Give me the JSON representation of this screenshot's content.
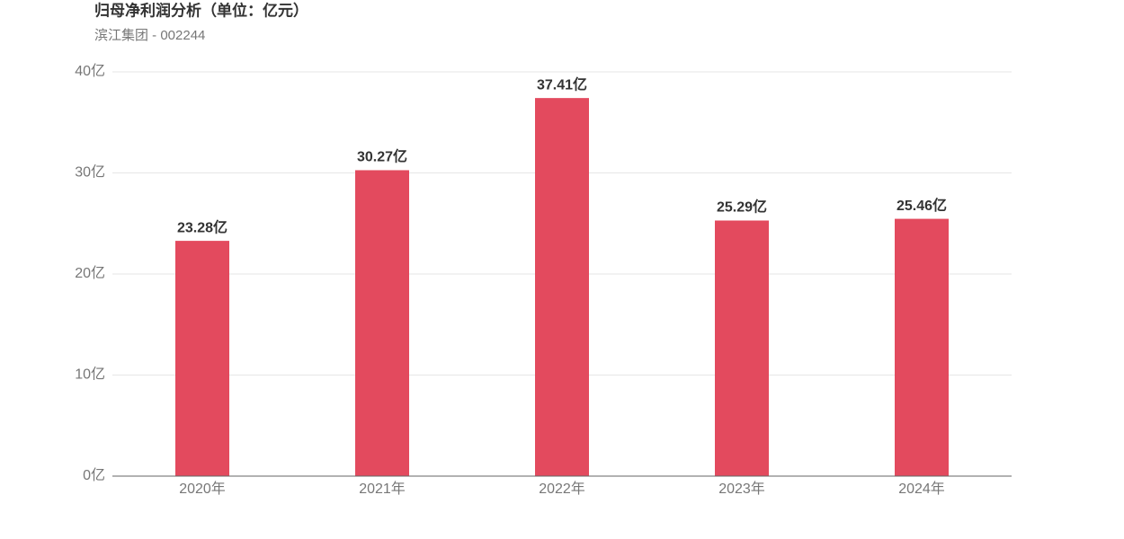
{
  "chart_data": {
    "type": "bar",
    "title": "归母净利润分析（单位：亿元）",
    "subtitle": "滨江集团 - 002244",
    "categories": [
      "2020年",
      "2021年",
      "2022年",
      "2023年",
      "2024年"
    ],
    "values": [
      23.28,
      30.27,
      37.41,
      25.29,
      25.46
    ],
    "value_labels": [
      "23.28亿",
      "30.27亿",
      "37.41亿",
      "25.29亿",
      "25.46亿"
    ],
    "color": "#e34a5e",
    "ylim": [
      0,
      40
    ],
    "yticks": [
      {
        "value": 0,
        "label": "0亿"
      },
      {
        "value": 10,
        "label": "10亿"
      },
      {
        "value": 20,
        "label": "20亿"
      },
      {
        "value": 30,
        "label": "30亿"
      },
      {
        "value": 40,
        "label": "40亿"
      }
    ],
    "grid": true
  }
}
